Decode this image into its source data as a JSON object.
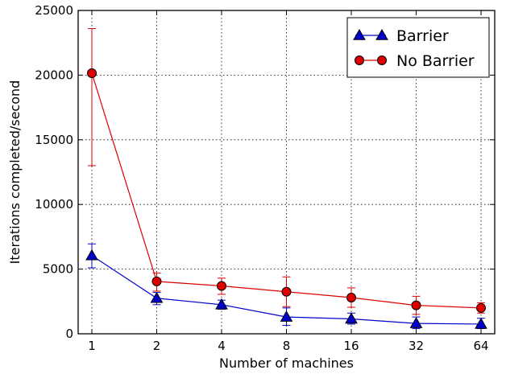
{
  "chart_data": {
    "type": "line",
    "title": "",
    "xlabel": "Number of machines",
    "ylabel": "Iterations completed/second",
    "categories": [
      "1",
      "2",
      "4",
      "8",
      "16",
      "32",
      "64"
    ],
    "ylim": [
      0,
      25000
    ],
    "yticks": [
      "0",
      "5000",
      "10000",
      "15000",
      "20000",
      "25000"
    ],
    "grid": true,
    "legend_position": "top-right",
    "series": [
      {
        "name": "Barrier",
        "color": "#0000cc",
        "marker": "triangle",
        "values": [
          6050,
          2750,
          2250,
          1300,
          1150,
          800,
          750
        ],
        "err_low": [
          5100,
          2250,
          1900,
          650,
          750,
          400,
          400
        ],
        "err_high": [
          6950,
          3200,
          2600,
          2000,
          1600,
          1300,
          1200
        ]
      },
      {
        "name": "No Barrier",
        "color": "#dd0000",
        "marker": "circle",
        "values": [
          20150,
          4050,
          3700,
          3250,
          2800,
          2200,
          2000
        ],
        "err_low": [
          13000,
          3300,
          3050,
          2100,
          2050,
          1500,
          1600
        ],
        "err_high": [
          23600,
          4700,
          4300,
          4400,
          3550,
          2900,
          2400
        ]
      }
    ]
  }
}
